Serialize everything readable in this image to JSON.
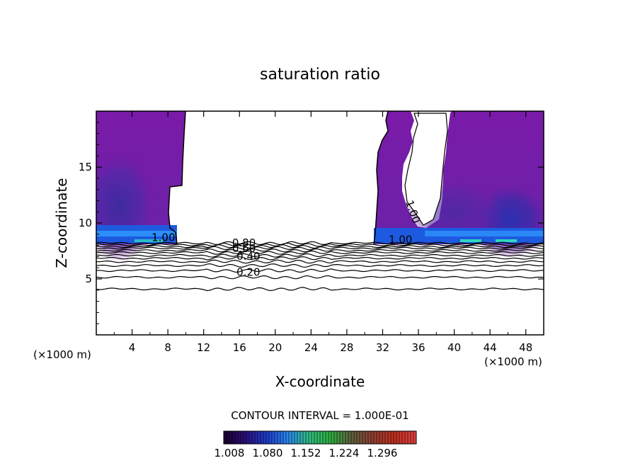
{
  "chart_data": {
    "type": "heatmap",
    "title": "saturation ratio",
    "xlabel": "X-coordinate",
    "ylabel": "Z-coordinate",
    "x_unit_left": "(×1000 m)",
    "x_unit_right": "(×1000 m)",
    "xlim": [
      0,
      50
    ],
    "ylim": [
      0,
      20
    ],
    "xticks": [
      "4",
      "8",
      "12",
      "16",
      "20",
      "24",
      "28",
      "32",
      "36",
      "40",
      "44",
      "48"
    ],
    "yticks": [
      "5",
      "10",
      "15"
    ],
    "contour_interval_text": "CONTOUR INTERVAL = 1.000E-01",
    "contour_labels": [
      {
        "text": "1.00",
        "x": 7.5,
        "z": 8.4,
        "rotate": 0
      },
      {
        "text": "0.80",
        "x": 16.5,
        "z": 7.9,
        "rotate": 0
      },
      {
        "text": "0.60",
        "x": 16.5,
        "z": 7.4,
        "rotate": 0
      },
      {
        "text": "0.40",
        "x": 17.0,
        "z": 6.7,
        "rotate": 0
      },
      {
        "text": "0.20",
        "x": 17.0,
        "z": 5.3,
        "rotate": 0
      },
      {
        "text": "1.00",
        "x": 35.0,
        "z": 10.9,
        "rotate": 70
      },
      {
        "text": "1.00",
        "x": 34.0,
        "z": 8.2,
        "rotate": 0
      }
    ],
    "contour_levels_z": [
      8.2,
      8.05,
      7.9,
      7.75,
      7.55,
      7.35,
      7.1,
      6.85,
      6.55,
      6.2,
      5.75,
      5.15,
      4.1
    ],
    "colorbar": {
      "labels": [
        "1.008",
        "1.080",
        "1.152",
        "1.224",
        "1.296"
      ],
      "colors": [
        "#1a0030",
        "#2a1080",
        "#1f3fd0",
        "#2a8af0",
        "#30c080",
        "#30b040",
        "#606040",
        "#904030",
        "#c03020",
        "#e04040"
      ]
    },
    "colors": {
      "field_base": "#7a1aa8",
      "field_dark": "#4a28a8",
      "band": "#1e5adf",
      "band_bright": "#2f9bff",
      "band_cyan": "#30d8c0"
    }
  }
}
